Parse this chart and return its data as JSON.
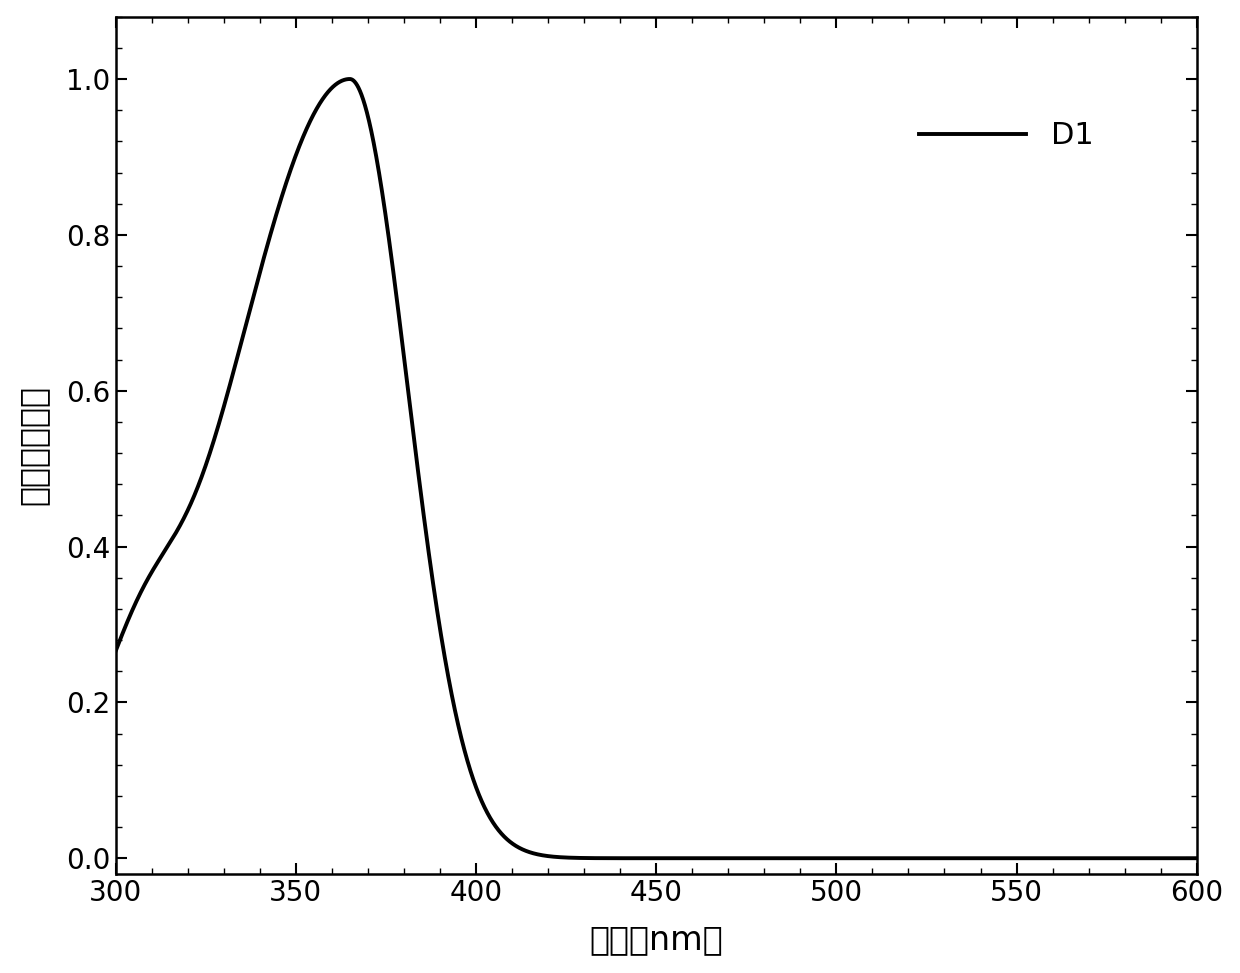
{
  "xlabel": "波长（nm）",
  "ylabel": "相对吸收轻度",
  "legend_label": "D1",
  "xlim": [
    300,
    600
  ],
  "ylim": [
    -0.02,
    1.08
  ],
  "xticks": [
    300,
    350,
    400,
    450,
    500,
    550,
    600
  ],
  "yticks": [
    0,
    0.2,
    0.4,
    0.6,
    0.8,
    1.0
  ],
  "line_color": "#000000",
  "line_width": 2.8,
  "background_color": "#ffffff",
  "label_fontsize": 24,
  "tick_fontsize": 20,
  "legend_fontsize": 22
}
